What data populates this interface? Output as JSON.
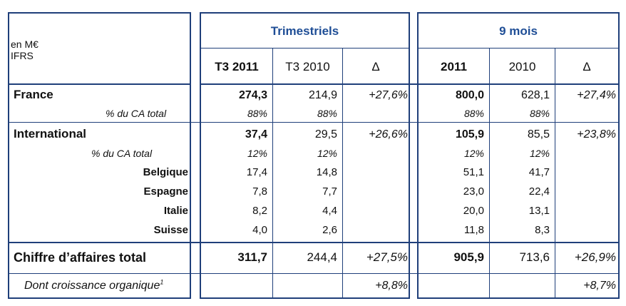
{
  "header": {
    "unit_line1": "en M€",
    "unit_line2": "IFRS",
    "group_quarterly": "Trimestriels",
    "group_9months": "9 mois",
    "cols": [
      "T3 2011",
      "T3 2010",
      "Δ",
      "2011",
      "2010",
      "Δ"
    ]
  },
  "rows": {
    "france": {
      "label": "France",
      "values": [
        "274,3",
        "214,9",
        "+27,6%",
        "800,0",
        "628,1",
        "+27,4%"
      ],
      "share_label": "% du CA total",
      "share": [
        "88%",
        "88%",
        "88%",
        "88%"
      ]
    },
    "international": {
      "label": "International",
      "values": [
        "37,4",
        "29,5",
        "+26,6%",
        "105,9",
        "85,5",
        "+23,8%"
      ],
      "share_label": "% du CA total",
      "share": [
        "12%",
        "12%",
        "12%",
        "12%"
      ]
    },
    "belgique": {
      "label": "Belgique",
      "values": [
        "17,4",
        "14,8",
        "51,1",
        "41,7"
      ]
    },
    "espagne": {
      "label": "Espagne",
      "values": [
        "7,8",
        "7,7",
        "23,0",
        "22,4"
      ]
    },
    "italie": {
      "label": "Italie",
      "values": [
        "8,2",
        "4,4",
        "20,0",
        "13,1"
      ]
    },
    "suisse": {
      "label": "Suisse",
      "values": [
        "4,0",
        "2,6",
        "11,8",
        "8,3"
      ]
    },
    "total": {
      "label": "Chiffre d’affaires total",
      "values": [
        "311,7",
        "244,4",
        "+27,5%",
        "905,9",
        "713,6",
        "+26,9%"
      ]
    },
    "organic": {
      "label": "Dont croissance organique",
      "footnote": "1",
      "values": [
        "+8,8%",
        "+8,7%"
      ]
    }
  }
}
